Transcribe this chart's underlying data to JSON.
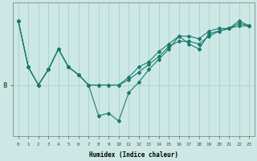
{
  "xlabel": "Humidex (Indice chaleur)",
  "ylabel": "",
  "bg_color": "#cce8e4",
  "line_color": "#1a7a6e",
  "grid_color": "#aacfcb",
  "x_values": [
    0,
    1,
    2,
    3,
    4,
    5,
    6,
    7,
    8,
    9,
    10,
    11,
    12,
    13,
    14,
    15,
    16,
    17,
    18,
    19,
    20,
    21,
    22,
    23
  ],
  "line1": [
    10.5,
    8.7,
    8.0,
    8.6,
    9.4,
    8.7,
    8.4,
    8.0,
    8.0,
    8.0,
    8.0,
    8.3,
    8.7,
    8.9,
    9.3,
    9.6,
    9.9,
    9.9,
    9.8,
    10.1,
    10.2,
    10.2,
    10.4,
    10.3
  ],
  "line2": [
    10.5,
    8.7,
    8.0,
    8.6,
    9.4,
    8.7,
    8.4,
    8.0,
    8.0,
    8.0,
    8.0,
    8.2,
    8.5,
    8.8,
    9.1,
    9.5,
    9.7,
    9.7,
    9.6,
    9.9,
    10.1,
    10.2,
    10.3,
    10.3
  ],
  "line3": [
    10.5,
    8.7,
    8.0,
    8.6,
    9.4,
    8.7,
    8.4,
    8.0,
    6.8,
    6.9,
    6.6,
    7.7,
    8.1,
    8.6,
    9.0,
    9.4,
    9.9,
    9.6,
    9.4,
    10.0,
    10.1,
    10.2,
    10.5,
    10.3
  ],
  "ytick_labels": [
    "8"
  ],
  "ytick_positions": [
    8.0
  ],
  "xlim": [
    -0.5,
    23.5
  ],
  "ylim": [
    6.0,
    11.2
  ]
}
